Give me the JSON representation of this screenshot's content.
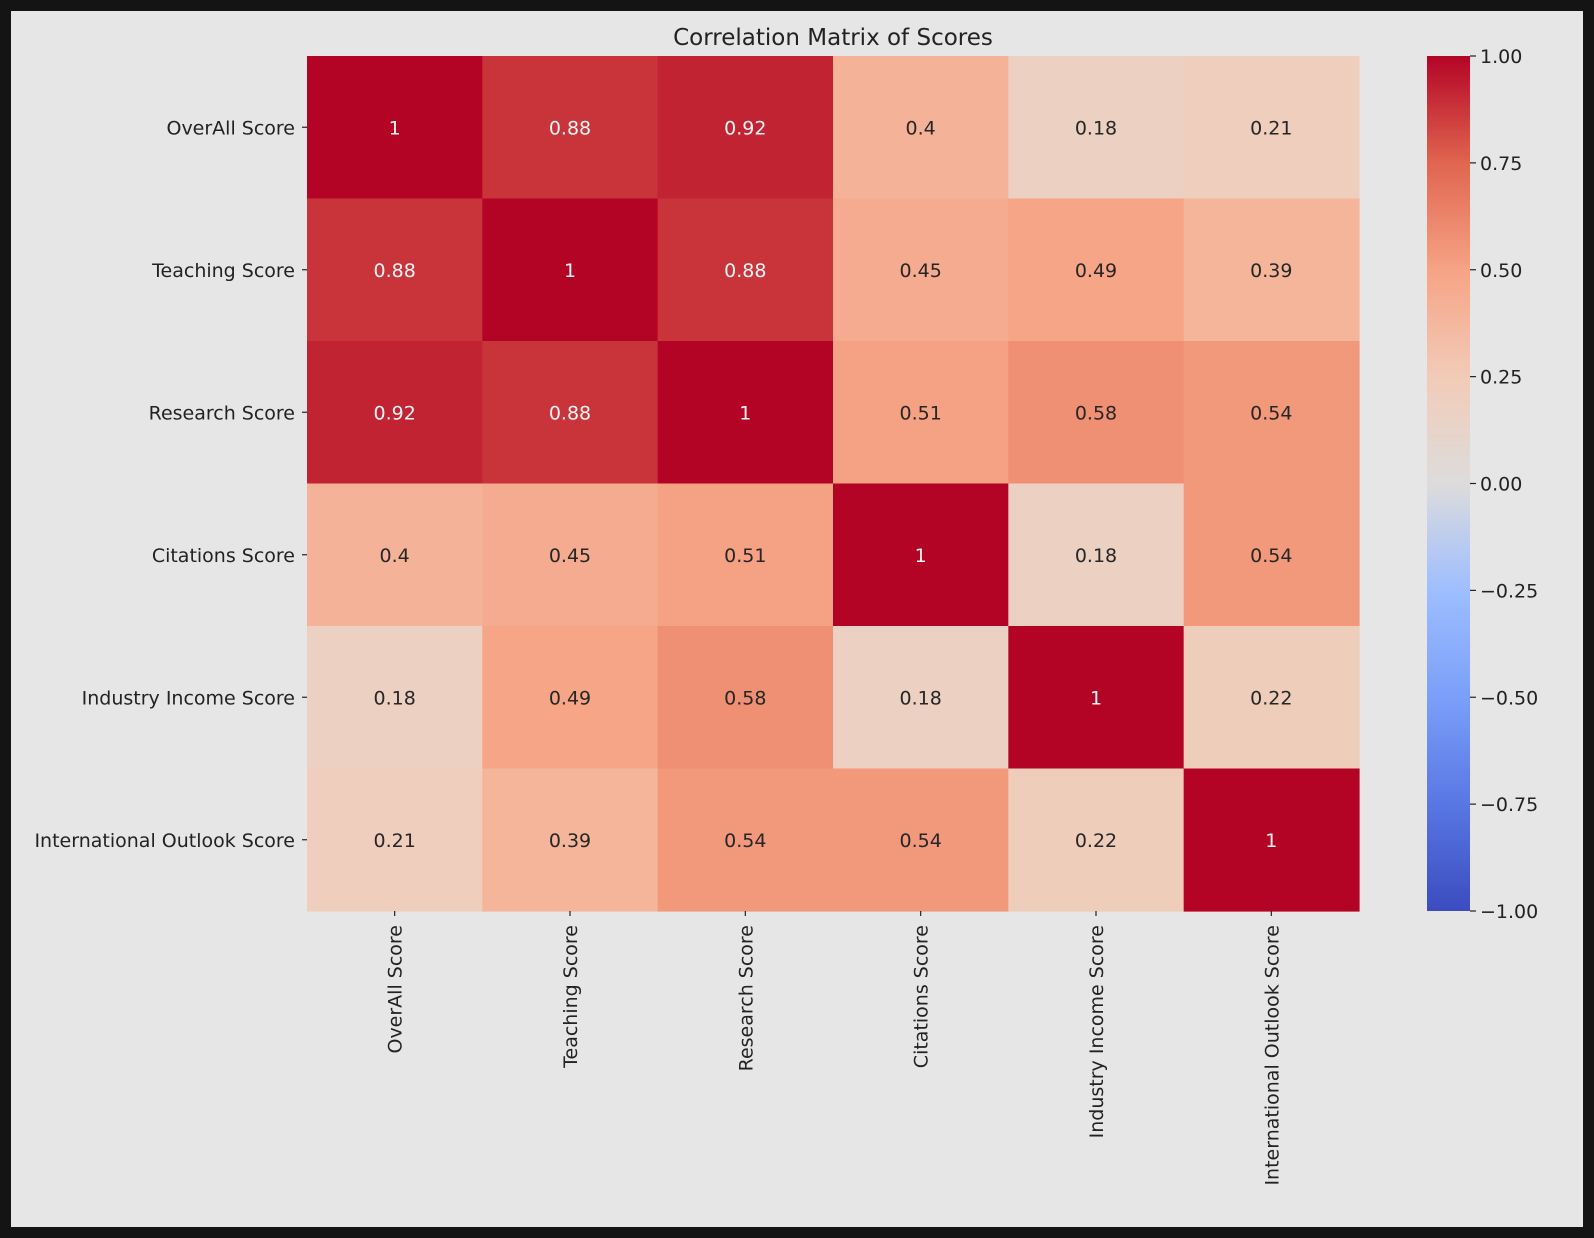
{
  "chart_data": {
    "type": "heatmap",
    "title": "Correlation Matrix of Scores",
    "row_labels": [
      "OverAll Score",
      "Teaching Score",
      "Research Score",
      "Citations Score",
      "Industry Income Score",
      "International Outlook Score"
    ],
    "col_labels": [
      "OverAll Score",
      "Teaching Score",
      "Research Score",
      "Citations Score",
      "Industry Income Score",
      "International Outlook Score"
    ],
    "values": [
      [
        1,
        0.88,
        0.92,
        0.4,
        0.18,
        0.21
      ],
      [
        0.88,
        1,
        0.88,
        0.45,
        0.49,
        0.39
      ],
      [
        0.92,
        0.88,
        1,
        0.51,
        0.58,
        0.54
      ],
      [
        0.4,
        0.45,
        0.51,
        1,
        0.18,
        0.54
      ],
      [
        0.18,
        0.49,
        0.58,
        0.18,
        1,
        0.22
      ],
      [
        0.21,
        0.39,
        0.54,
        0.54,
        0.22,
        1
      ]
    ],
    "annotations": [
      [
        "1",
        "0.88",
        "0.92",
        "0.4",
        "0.18",
        "0.21"
      ],
      [
        "0.88",
        "1",
        "0.88",
        "0.45",
        "0.49",
        "0.39"
      ],
      [
        "0.92",
        "0.88",
        "1",
        "0.51",
        "0.58",
        "0.54"
      ],
      [
        "0.4",
        "0.45",
        "0.51",
        "1",
        "0.18",
        "0.54"
      ],
      [
        "0.18",
        "0.49",
        "0.58",
        "0.18",
        "1",
        "0.22"
      ],
      [
        "0.21",
        "0.39",
        "0.54",
        "0.54",
        "0.22",
        "1"
      ]
    ],
    "colormap": "coolwarm",
    "vmin": -1,
    "vmax": 1,
    "colorbar_ticks": [
      1.0,
      0.75,
      0.5,
      0.25,
      0.0,
      -0.25,
      -0.5,
      -0.75,
      -1.0
    ],
    "colorbar_tick_labels": [
      "1.00",
      "0.75",
      "0.50",
      "0.25",
      "0.00",
      "−0.25",
      "−0.50",
      "−0.75",
      "−1.00"
    ],
    "colors": {
      "background": "#e6e6e6",
      "frame": "#141414",
      "text": "#222222",
      "annotation_light": "#f5f5f5",
      "annotation_dark": "#262626"
    }
  }
}
